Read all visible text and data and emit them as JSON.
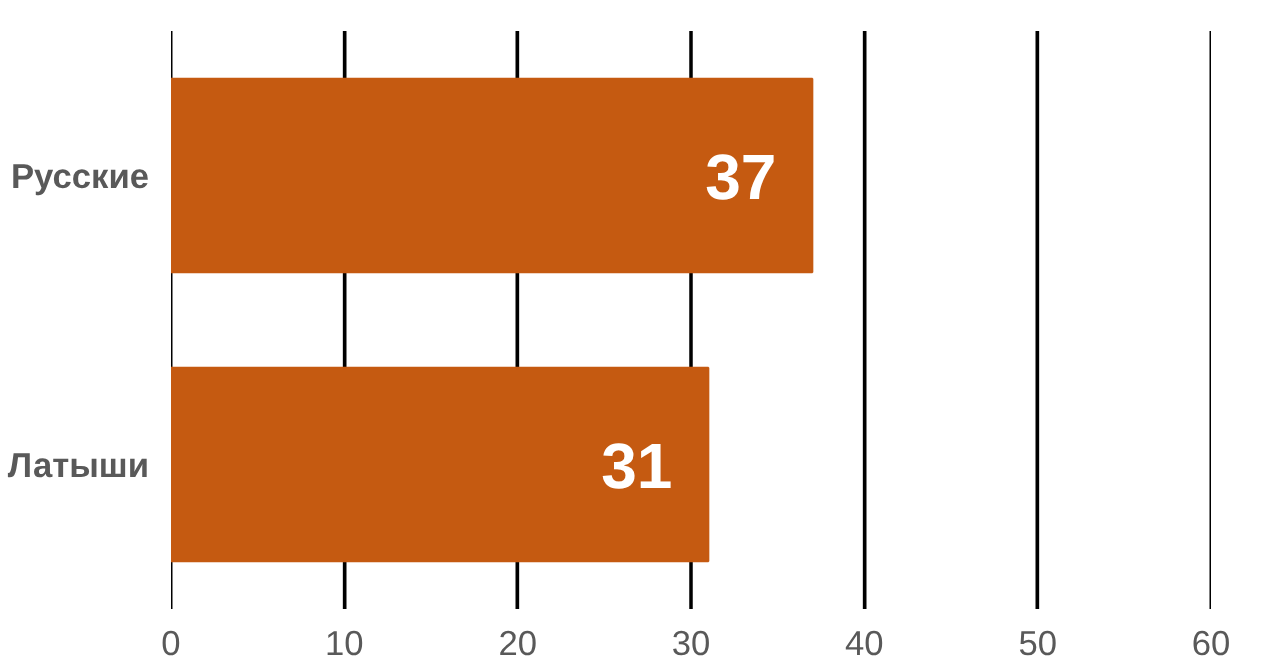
{
  "chart_data": {
    "type": "bar",
    "orientation": "horizontal",
    "categories": [
      "Русские",
      "Латыши"
    ],
    "values": [
      37,
      31
    ],
    "color": "#c55a11",
    "xlim": [
      0,
      60
    ],
    "xticks": [
      0,
      10,
      20,
      30,
      40,
      50,
      60
    ],
    "grid": "x",
    "data_labels": true
  }
}
